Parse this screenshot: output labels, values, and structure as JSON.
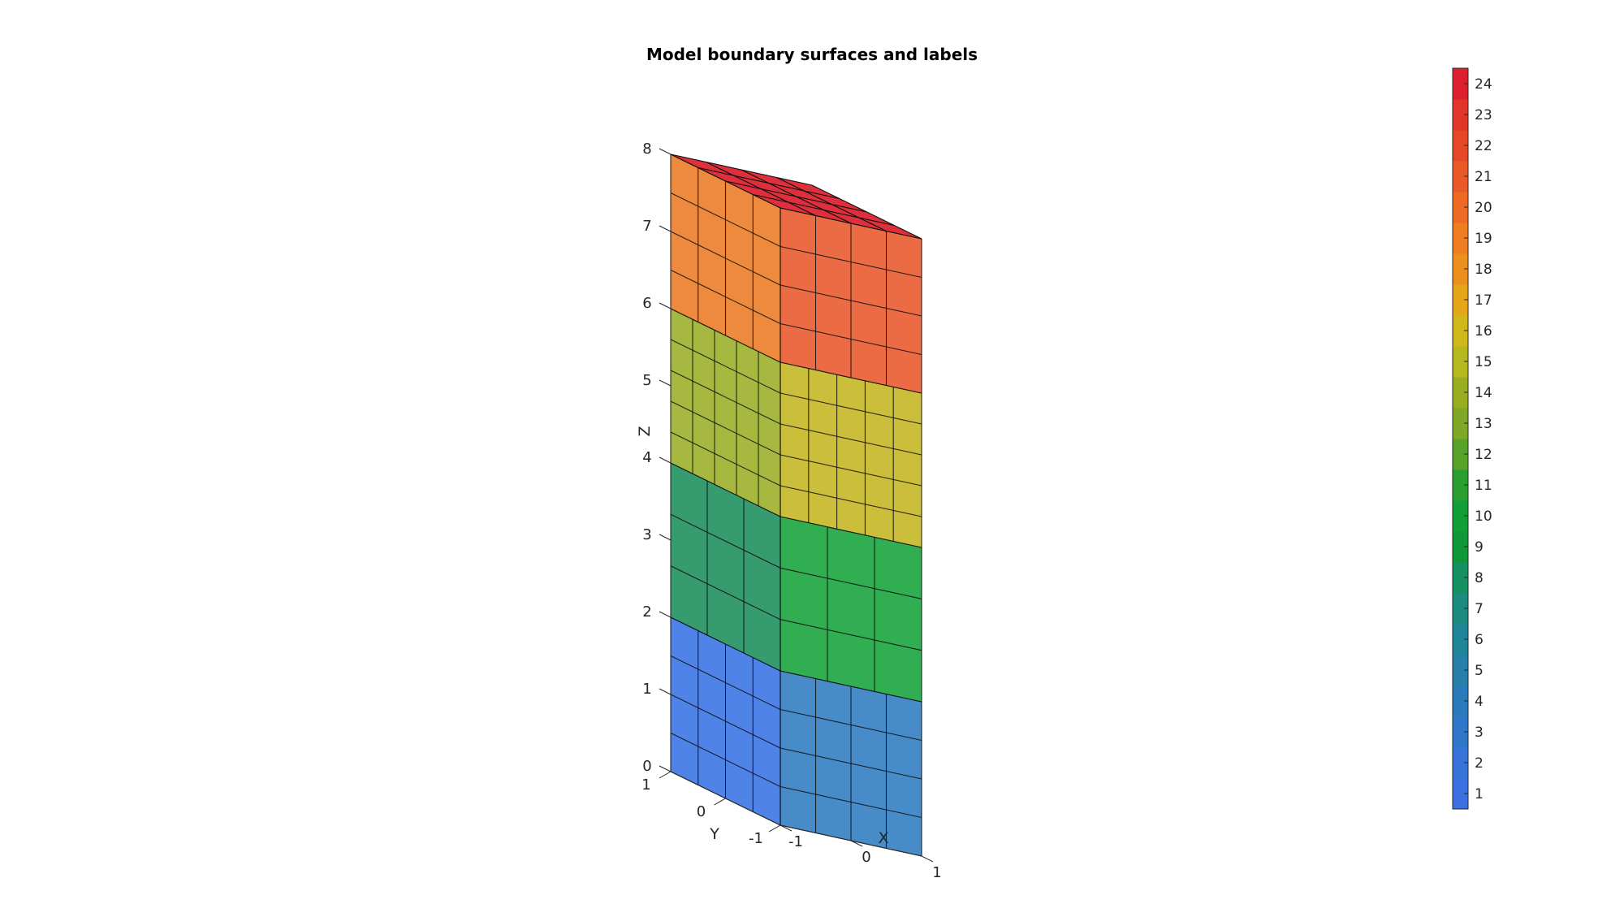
{
  "chart_data": {
    "type": "3d-surface",
    "title": "Model boundary surfaces and labels",
    "xlabel": "X",
    "ylabel": "Y",
    "zlabel": "Z",
    "xlim": [
      -1,
      1
    ],
    "ylim": [
      -1,
      1
    ],
    "zlim": [
      0,
      8
    ],
    "xticks": [
      "-1",
      "0",
      "1"
    ],
    "yticks": [
      "-1",
      "0",
      "1"
    ],
    "zticks": [
      "0",
      "1",
      "2",
      "3",
      "4",
      "5",
      "6",
      "7",
      "8"
    ],
    "blocks": [
      {
        "z_range": [
          0,
          2
        ],
        "subdivisions": [
          4,
          4,
          4
        ],
        "label": 1
      },
      {
        "z_range": [
          2,
          4
        ],
        "subdivisions": [
          3,
          3,
          3
        ],
        "label": 2
      },
      {
        "z_range": [
          4,
          6
        ],
        "subdivisions": [
          5,
          5,
          5
        ],
        "label": 3
      },
      {
        "z_range": [
          6,
          8
        ],
        "subdivisions": [
          4,
          4,
          4
        ],
        "label": 4
      }
    ],
    "colorbar": {
      "min": 0.5,
      "max": 24.5,
      "ticks": [
        "1",
        "2",
        "3",
        "4",
        "5",
        "6",
        "7",
        "8",
        "9",
        "10",
        "11",
        "12",
        "13",
        "14",
        "15",
        "16",
        "17",
        "18",
        "19",
        "20",
        "21",
        "22",
        "23",
        "24"
      ],
      "colors": [
        "#3c6fe0",
        "#3774d7",
        "#3077c9",
        "#2b7bbc",
        "#2680aa",
        "#1f8598",
        "#1a8b7e",
        "#159063",
        "#109838",
        "#129e36",
        "#2a9f30",
        "#57a229",
        "#7ea825",
        "#99ad21",
        "#b6b81e",
        "#d0b71a",
        "#e6a619",
        "#ed8f1d",
        "#ef7d21",
        "#ed6924",
        "#e95a26",
        "#e54727",
        "#e23529",
        "#dc2030"
      ]
    },
    "face_colors": {
      "front_left": [
        "#3772e5",
        "#1a8e5c",
        "#9aae24",
        "#ea7a22"
      ],
      "front_right": [
        "#2d7bc2",
        "#16a33a",
        "#c4b51f",
        "#e8562a"
      ],
      "top": "#dc2532"
    }
  }
}
